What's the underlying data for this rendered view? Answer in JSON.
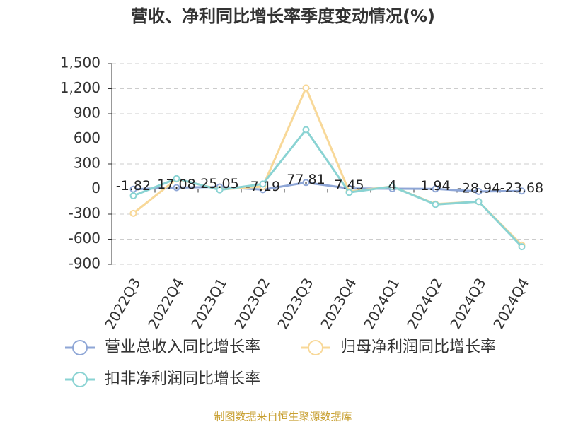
{
  "chart_data": {
    "type": "line",
    "title": "营收、净利同比增长率季度变动情况(%)",
    "categories": [
      "2022Q3",
      "2022Q4",
      "2023Q1",
      "2023Q2",
      "2023Q3",
      "2023Q4",
      "2024Q1",
      "2024Q2",
      "2024Q3",
      "2024Q4"
    ],
    "series": [
      {
        "name": "营业总收入同比增长率",
        "color": "#8ea6d6",
        "values": [
          -1.82,
          17.08,
          25.05,
          -7.19,
          77.81,
          7.45,
          4,
          1.94,
          -28.94,
          -23.68
        ],
        "show_labels": true
      },
      {
        "name": "归母净利润同比增长率",
        "color": "#f8d898",
        "values": [
          -290,
          120,
          -5,
          30,
          1210,
          -30,
          30,
          -180,
          -150,
          -670
        ]
      },
      {
        "name": "扣非净利润同比增长率",
        "color": "#8ad3d3",
        "values": [
          -80,
          125,
          -10,
          60,
          710,
          -40,
          30,
          -185,
          -150,
          -690
        ]
      }
    ],
    "ylim": [
      -900,
      1500
    ],
    "yticks": [
      {
        "value": 1500,
        "label": "1,500"
      },
      {
        "value": 1200,
        "label": "1,200"
      },
      900,
      600,
      300,
      0,
      -300,
      -600,
      -900
    ],
    "grid": true,
    "footer": "制图数据来自恒生聚源数据库"
  }
}
